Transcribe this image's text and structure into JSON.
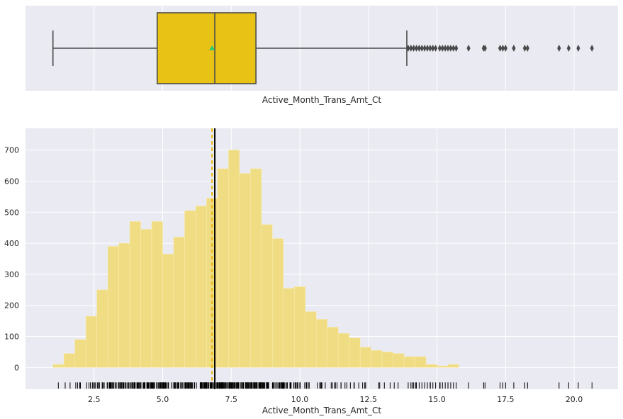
{
  "chart_data": [
    {
      "type": "box",
      "xlabel": "Active_Month_Trans_Amt_Ct",
      "xlim": [
        0.0,
        21.6
      ],
      "whisker_low": 1.0,
      "q1": 4.8,
      "median": 6.9,
      "mean": 6.8,
      "q3": 8.4,
      "whisker_high": 13.9,
      "outliers": [
        13.95,
        14.05,
        14.15,
        14.25,
        14.35,
        14.45,
        14.55,
        14.65,
        14.75,
        14.85,
        14.95,
        15.1,
        15.2,
        15.3,
        15.4,
        15.5,
        15.6,
        15.7,
        16.15,
        16.7,
        16.75,
        17.3,
        17.4,
        17.5,
        17.8,
        18.2,
        18.3,
        19.45,
        19.8,
        20.15,
        20.65
      ],
      "colors": {
        "box": "#e8c315",
        "line": "#4a4a4a",
        "mean_marker": "#2ecc71",
        "background": "#eaeaf2",
        "grid": "#ffffff"
      }
    },
    {
      "type": "histogram",
      "xlabel": "Active_Month_Trans_Amt_Ct",
      "xlim": [
        0.0,
        21.6
      ],
      "ylim": [
        -70,
        770
      ],
      "bin_start": 1.0,
      "bin_width": 0.4,
      "counts": [
        10,
        45,
        90,
        165,
        250,
        390,
        400,
        470,
        445,
        470,
        365,
        420,
        505,
        520,
        545,
        640,
        700,
        625,
        640,
        460,
        415,
        255,
        260,
        180,
        155,
        130,
        110,
        95,
        65,
        55,
        50,
        45,
        35,
        35,
        10,
        5,
        10
      ],
      "mean": 6.8,
      "median": 6.9,
      "x_ticks": [
        2.5,
        5.0,
        7.5,
        10.0,
        12.5,
        15.0,
        17.5,
        20.0
      ],
      "x_tick_labels": [
        "2.5",
        "5.0",
        "7.5",
        "10.0",
        "12.5",
        "15.0",
        "17.5",
        "20.0"
      ],
      "y_ticks": [
        0,
        100,
        200,
        300,
        400,
        500,
        600,
        700
      ],
      "y_tick_labels": [
        "0",
        "100",
        "200",
        "300",
        "400",
        "500",
        "600",
        "700"
      ],
      "grid": true,
      "colors": {
        "bar": "#f0dc82",
        "bar_edge": "#f7ebb0",
        "mean_line": "#e8b90a",
        "median_line": "#000000",
        "rug": "#000000",
        "background": "#eaeaf2",
        "grid": "#ffffff"
      }
    }
  ]
}
